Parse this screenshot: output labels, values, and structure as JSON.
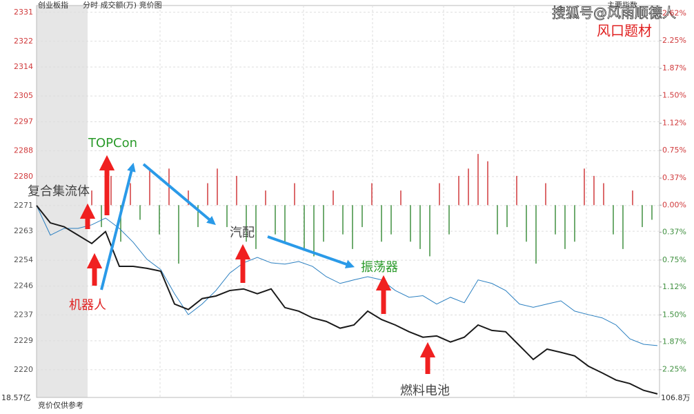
{
  "chart_data": {
    "type": "line",
    "title": "创业板指",
    "subtitle": "分时 成交额(万) 竞价图",
    "panel_label": "主要指数",
    "watermark": "搜狐号@风雨顺德人",
    "tag": "风口题材",
    "auction_note": "竞价仅供参考",
    "left_bottom_label": "18.57亿",
    "right_bottom_label": "106.8万",
    "ylim": [
      2211.4,
      2333.1
    ],
    "yticks": [
      2331,
      2322,
      2314,
      2305,
      2297,
      2288,
      2280,
      2271,
      2263,
      2254,
      2246,
      2237,
      2229,
      2220
    ],
    "y2lim": [
      -2.63,
      2.73
    ],
    "y2ticks": [
      {
        "value": 2.62,
        "label": "2.62%"
      },
      {
        "value": 2.25,
        "label": "2.25%"
      },
      {
        "value": 1.87,
        "label": "1.87%"
      },
      {
        "value": 1.5,
        "label": "1.50%"
      },
      {
        "value": 1.12,
        "label": "1.12%"
      },
      {
        "value": 0.75,
        "label": "0.75%"
      },
      {
        "value": 0.37,
        "label": "0.37%"
      },
      {
        "value": 0,
        "label": "0.00%"
      },
      {
        "value": -0.37,
        "label": "0.37%"
      },
      {
        "value": -0.75,
        "label": "0.75%"
      },
      {
        "value": -1.12,
        "label": "1.12%"
      },
      {
        "value": -1.5,
        "label": "1.50%"
      },
      {
        "value": -1.87,
        "label": "1.87%"
      },
      {
        "value": -2.25,
        "label": "2.25%"
      }
    ],
    "grid": true,
    "series": [
      {
        "color": "#1a1a1a",
        "values": [
          2271.0,
          2265.6,
          2264.4,
          2261.8,
          2259.2,
          2262.9,
          2252.1,
          2252.1,
          2251.5,
          2250.6,
          2240.4,
          2238.7,
          2242.1,
          2242.9,
          2244.6,
          2245.1,
          2243.6,
          2245.1,
          2239.3,
          2238.2,
          2236.1,
          2235.0,
          2232.9,
          2233.9,
          2238.2,
          2235.6,
          2233.9,
          2231.8,
          2230.1,
          2230.5,
          2228.6,
          2230.1,
          2233.9,
          2232.2,
          2231.8,
          2227.5,
          2223.2,
          2226.4,
          2225.4,
          2224.3,
          2221.1,
          2219.0,
          2216.8,
          2215.7,
          2213.6,
          2212.5
        ]
      },
      {
        "color": "#2a7fc0",
        "values": [
          2271.0,
          2261.8,
          2263.9,
          2263.9,
          2265.0,
          2267.1,
          2263.9,
          2259.6,
          2254.3,
          2251.1,
          2243.6,
          2237.1,
          2240.4,
          2244.6,
          2250.0,
          2253.2,
          2254.9,
          2253.2,
          2252.8,
          2253.6,
          2252.1,
          2248.9,
          2246.8,
          2247.9,
          2248.9,
          2247.9,
          2244.6,
          2242.5,
          2243.0,
          2240.4,
          2242.5,
          2240.8,
          2247.9,
          2246.8,
          2244.6,
          2240.4,
          2239.4,
          2240.4,
          2241.4,
          2238.2,
          2237.1,
          2236.1,
          2233.9,
          2229.6,
          2227.9,
          2227.5
        ]
      }
    ],
    "bars": {
      "axis": "y2",
      "up_color": "#d0393b",
      "down_color": "#3f8f3f",
      "values": [
        0.2,
        -0.3,
        0.4,
        -0.5,
        0.3,
        -0.2,
        0.5,
        -0.4,
        0.5,
        -0.8,
        0.2,
        -0.3,
        0.3,
        0.5,
        -0.3,
        0.4,
        -0.5,
        -0.6,
        0.2,
        -0.4,
        -0.5,
        0.3,
        -0.6,
        -0.7,
        -0.5,
        0.2,
        -0.4,
        -0.6,
        -0.3,
        0.3,
        -0.5,
        -0.4,
        0.2,
        -0.5,
        -0.6,
        -0.7,
        0.3,
        -0.4,
        0.4,
        0.5,
        0.7,
        0.6,
        -0.4,
        -0.3,
        0.4,
        -0.5,
        -0.8,
        0.3,
        -0.4,
        -0.6,
        -0.5,
        0.5,
        0.4,
        0.3,
        -0.4,
        -0.6,
        0.2,
        -0.3,
        -0.2
      ]
    },
    "annotations": [
      {
        "text": "复合集流体",
        "color": "#444444"
      },
      {
        "text": "TOPCon",
        "color": "#2a9a2a"
      },
      {
        "text": "机器人",
        "color": "#e02020"
      },
      {
        "text": "汽配",
        "color": "#444444"
      },
      {
        "text": "振荡器",
        "color": "#2a9a2a"
      },
      {
        "text": "燃料电池",
        "color": "#444444"
      }
    ]
  }
}
